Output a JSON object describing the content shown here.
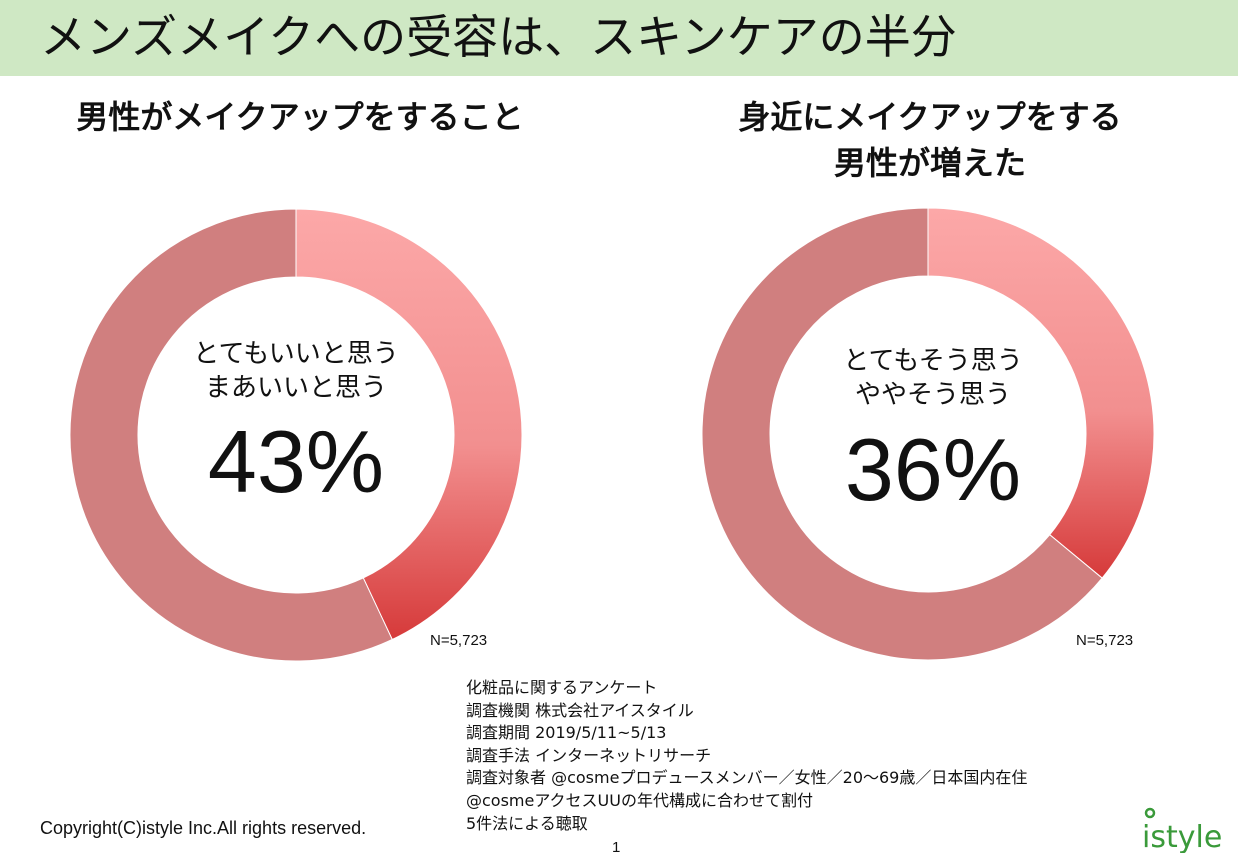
{
  "header": {
    "title": "メンズメイクへの受容は、スキンケアの半分"
  },
  "colors": {
    "header_bg": "#cfe8c4",
    "remainder": "#d07f7f",
    "highlight_top": "#fca8a8",
    "highlight_bottom": "#d63a3a",
    "logo": "#3a9a3a"
  },
  "chart_data": [
    {
      "type": "pie",
      "title": "男性がメイクアップをすること",
      "center_caption": [
        "とてもいいと思う",
        "まあいいと思う"
      ],
      "center_value_label": "43%",
      "n_label": "N=5,723",
      "slices": [
        {
          "label": "とてもいいと思う・まあいいと思う",
          "value": 43
        },
        {
          "label": "",
          "value": 57
        }
      ]
    },
    {
      "type": "pie",
      "title": "身近にメイクアップをする男性が増えた",
      "title_lines": [
        "身近にメイクアップをする",
        "男性が増えた"
      ],
      "center_caption": [
        "とてもそう思う",
        "ややそう思う"
      ],
      "center_value_label": "36%",
      "n_label": "N=5,723",
      "slices": [
        {
          "label": "とてもそう思う・ややそう思う",
          "value": 36
        },
        {
          "label": "",
          "value": 64
        }
      ]
    }
  ],
  "survey_notes": [
    "化粧品に関するアンケート",
    "調査機関 株式会社アイスタイル",
    "調査期間 2019/5/11~5/13",
    "調査手法 インターネットリサーチ",
    "調査対象者 @cosmeプロデュースメンバー／女性／20～69歳／日本国内在住",
    "@cosmeアクセスUUの年代構成に合わせて割付",
    "5件法による聴取"
  ],
  "footer": {
    "copyright": "Copyright(C)istyle Inc.All rights reserved.",
    "page_number": "1",
    "logo_text": "istyle"
  }
}
